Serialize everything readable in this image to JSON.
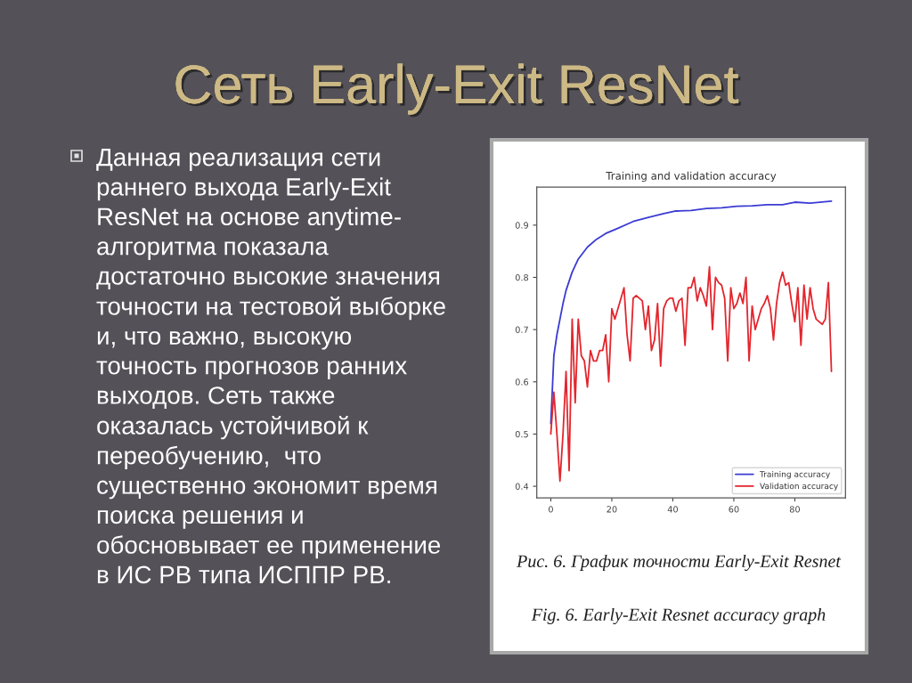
{
  "chart_data": {
    "type": "line",
    "title": "Training and validation accuracy",
    "series": [
      {
        "name": "Training accuracy",
        "color": "#3b3bd4",
        "x": [
          0,
          1,
          2,
          4,
          5,
          7,
          9,
          12,
          15,
          18,
          22,
          27,
          32,
          37,
          41,
          46,
          51,
          56,
          61,
          66,
          71,
          76,
          80,
          85,
          92
        ],
        "values": [
          0.52,
          0.65,
          0.69,
          0.75,
          0.775,
          0.81,
          0.835,
          0.858,
          0.873,
          0.884,
          0.894,
          0.907,
          0.915,
          0.922,
          0.927,
          0.928,
          0.932,
          0.933,
          0.936,
          0.937,
          0.939,
          0.939,
          0.944,
          0.942,
          0.946
        ]
      },
      {
        "name": "Validation accuracy",
        "color": "#e3262d",
        "x": [
          0,
          1,
          2,
          3,
          4,
          5,
          6,
          7,
          8,
          9,
          10,
          11,
          12,
          13,
          14,
          15,
          16,
          17,
          18,
          19,
          20,
          21,
          22,
          23,
          24,
          25,
          26,
          27,
          28,
          29,
          30,
          31,
          32,
          33,
          34,
          35,
          36,
          37,
          38,
          39,
          40,
          41,
          42,
          43,
          44,
          45,
          46,
          47,
          48,
          49,
          50,
          51,
          52,
          53,
          54,
          55,
          56,
          57,
          58,
          59,
          60,
          61,
          62,
          63,
          64,
          65,
          66,
          67,
          68,
          69,
          70,
          71,
          72,
          73,
          74,
          75,
          76,
          77,
          78,
          79,
          80,
          81,
          82,
          83,
          84,
          85,
          86,
          87,
          88,
          89,
          90,
          91,
          92
        ],
        "values": [
          0.5,
          0.58,
          0.5,
          0.41,
          0.5,
          0.62,
          0.43,
          0.72,
          0.56,
          0.72,
          0.65,
          0.64,
          0.59,
          0.66,
          0.64,
          0.64,
          0.66,
          0.66,
          0.69,
          0.6,
          0.74,
          0.72,
          0.74,
          0.76,
          0.78,
          0.69,
          0.64,
          0.76,
          0.765,
          0.76,
          0.755,
          0.7,
          0.745,
          0.66,
          0.68,
          0.75,
          0.63,
          0.74,
          0.755,
          0.76,
          0.76,
          0.735,
          0.755,
          0.76,
          0.67,
          0.78,
          0.78,
          0.8,
          0.755,
          0.78,
          0.765,
          0.745,
          0.82,
          0.7,
          0.8,
          0.79,
          0.785,
          0.76,
          0.64,
          0.78,
          0.74,
          0.75,
          0.77,
          0.75,
          0.8,
          0.64,
          0.745,
          0.7,
          0.72,
          0.74,
          0.75,
          0.765,
          0.74,
          0.68,
          0.75,
          0.79,
          0.81,
          0.785,
          0.79,
          0.75,
          0.715,
          0.78,
          0.67,
          0.785,
          0.72,
          0.78,
          0.74,
          0.72,
          0.715,
          0.71,
          0.72,
          0.79,
          0.62
        ]
      }
    ],
    "xlim": [
      -4.6,
      96.6
    ],
    "ylim": [
      0.378,
      0.973
    ],
    "xticks": [
      0,
      20,
      40,
      60,
      80
    ],
    "yticks": [
      0.4,
      0.5,
      0.6,
      0.7,
      0.8,
      0.9
    ],
    "legend": "bottom right",
    "annotations": [
      "Сеть Early-Exit ResNet",
      "Данная реализация сети\nраннего выхода Early-Exit\nResNet на основе anytime-\nалгоритма показала\nдостаточно высокие значения\nточности на тестовой выборке\nи, что важно, высокую\nточность прогнозов ранних\nвыходов. Сеть также\nоказалась устойчивой к\nпереобучению,  что\nсущественно экономит время\nпоиска решения и\nобосновывает ее применение\nв ИС РВ типа ИСППР РВ.",
      "Рис. 6. График точности Early-Exit Resnet",
      "Fig. 6. Early-Exit Resnet accuracy graph"
    ]
  }
}
